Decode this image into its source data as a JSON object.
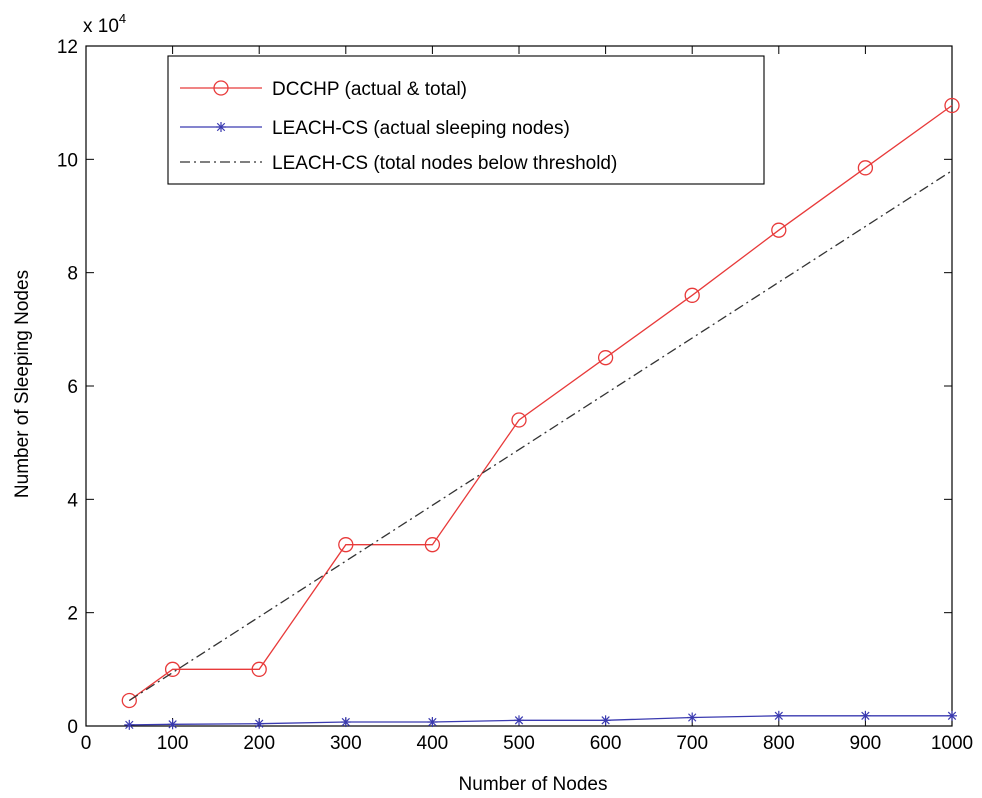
{
  "chart_data": {
    "type": "line",
    "title": "",
    "xlabel": "Number of Nodes",
    "ylabel": "Number of Sleeping Nodes",
    "y_exponent_label": {
      "base": "x 10",
      "power": "4"
    },
    "xlim": [
      0,
      1000
    ],
    "ylim": [
      0,
      120000
    ],
    "x_ticks": [
      0,
      100,
      200,
      300,
      400,
      500,
      600,
      700,
      800,
      900,
      1000
    ],
    "y_ticks": [
      0,
      20000,
      40000,
      60000,
      80000,
      100000,
      120000
    ],
    "y_tick_labels": [
      "0",
      "2",
      "4",
      "6",
      "8",
      "10",
      "12"
    ],
    "grid": false,
    "legend_position": "top-left",
    "series": [
      {
        "name": "DCCHP (actual & total)",
        "color": "#e83a3a",
        "marker": "circle",
        "line": "solid",
        "x": [
          50,
          100,
          200,
          300,
          400,
          500,
          600,
          700,
          800,
          900,
          1000
        ],
        "y": [
          4500,
          10000,
          10000,
          32000,
          32000,
          54000,
          65000,
          76000,
          87500,
          98500,
          109500
        ]
      },
      {
        "name": "LEACH-CS (actual sleeping nodes)",
        "color": "#3a3ab0",
        "marker": "star",
        "line": "solid",
        "x": [
          50,
          100,
          200,
          300,
          400,
          500,
          600,
          700,
          800,
          900,
          1000
        ],
        "y": [
          200,
          300,
          400,
          700,
          700,
          1000,
          1000,
          1500,
          1800,
          1800,
          1800
        ]
      },
      {
        "name": "LEACH-CS (total nodes below threshold)",
        "color": "#333333",
        "marker": "none",
        "line": "dashdot",
        "x": [
          50,
          1000
        ],
        "y": [
          4500,
          98000
        ]
      }
    ]
  }
}
